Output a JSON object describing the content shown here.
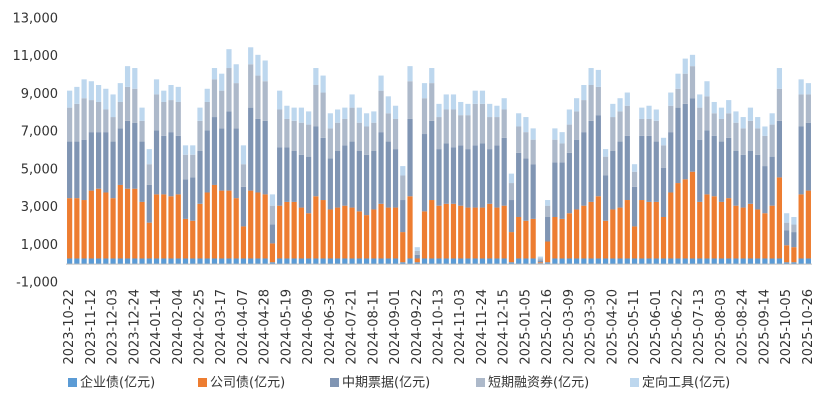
{
  "chart_data": {
    "type": "stacked_bar",
    "categories": [
      "2023-10-22",
      null,
      null,
      "2023-11-12",
      null,
      null,
      "2023-12-03",
      null,
      null,
      "2023-12-24",
      null,
      null,
      "2024-01-14",
      null,
      null,
      "2024-02-04",
      null,
      null,
      "2024-02-25",
      null,
      null,
      "2024-03-17",
      null,
      null,
      "2024-04-07",
      null,
      null,
      "2024-04-28",
      null,
      null,
      "2024-05-19",
      null,
      null,
      "2024-06-09",
      null,
      null,
      "2024-06-30",
      null,
      null,
      "2024-07-21",
      null,
      null,
      "2024-08-11",
      null,
      null,
      "2024-09-01",
      null,
      null,
      "2024-09-22",
      null,
      null,
      "2024-10-13",
      null,
      null,
      "2024-11-03",
      null,
      null,
      "2024-11-24",
      null,
      null,
      "2024-12-15",
      null,
      null,
      "2025-01-05",
      null,
      null,
      "2025-02-16",
      null,
      null,
      "2025-03-09",
      null,
      null,
      "2025-03-30",
      null,
      null,
      "2025-04-20",
      null,
      null,
      "2025-05-11",
      null,
      null,
      "2025-06-01",
      null,
      null,
      "2025-06-22",
      null,
      null,
      "2025-07-13",
      null,
      null,
      "2025-08-03",
      null,
      null,
      "2025-08-24",
      null,
      null,
      "2025-09-14",
      null,
      null,
      "2025-10-05",
      null,
      null,
      "2025-10-26"
    ],
    "series": [
      {
        "name": "企业债(亿元)",
        "color": "#5b9bd5",
        "values": [
          300,
          300,
          300,
          300,
          300,
          300,
          300,
          300,
          300,
          300,
          300,
          300,
          300,
          300,
          300,
          300,
          300,
          300,
          300,
          300,
          300,
          300,
          300,
          300,
          300,
          300,
          300,
          300,
          100,
          300,
          300,
          300,
          300,
          300,
          300,
          300,
          300,
          300,
          300,
          300,
          300,
          300,
          300,
          300,
          300,
          300,
          100,
          300,
          100,
          300,
          300,
          300,
          300,
          300,
          300,
          300,
          300,
          300,
          300,
          300,
          300,
          100,
          300,
          300,
          300,
          50,
          100,
          300,
          300,
          300,
          300,
          300,
          300,
          300,
          300,
          300,
          300,
          300,
          300,
          300,
          300,
          300,
          300,
          300,
          300,
          300,
          300,
          300,
          300,
          300,
          300,
          300,
          300,
          300,
          300,
          300,
          300,
          300,
          300,
          100,
          100,
          300,
          300
        ]
      },
      {
        "name": "公司债(亿元)",
        "color": "#ed7d31",
        "values": [
          3200,
          3200,
          3100,
          3600,
          3700,
          3500,
          3200,
          3900,
          3700,
          3700,
          3000,
          1900,
          3400,
          3400,
          3300,
          3400,
          2100,
          2000,
          2900,
          3500,
          3900,
          3600,
          3600,
          3200,
          1700,
          3600,
          3500,
          3400,
          1000,
          2800,
          3000,
          3000,
          2700,
          2400,
          3300,
          3100,
          2600,
          2700,
          2800,
          2700,
          2500,
          2300,
          2600,
          2900,
          2700,
          2700,
          1600,
          3300,
          200,
          2500,
          3100,
          2800,
          2900,
          2900,
          2800,
          2700,
          2700,
          2700,
          2900,
          2700,
          2800,
          1600,
          2200,
          2000,
          2100,
          50,
          1100,
          2200,
          2100,
          2400,
          2600,
          2800,
          3000,
          3300,
          2000,
          2600,
          2700,
          3100,
          1700,
          3100,
          3000,
          3000,
          2200,
          3500,
          4000,
          4200,
          4600,
          3000,
          3400,
          3300,
          3000,
          3200,
          2800,
          2700,
          2900,
          2600,
          2400,
          2800,
          4300,
          900,
          800,
          3400,
          3600
        ]
      },
      {
        "name": "中期票据(亿元)",
        "color": "#8095b3",
        "values": [
          3000,
          3000,
          3200,
          3100,
          3000,
          3200,
          3000,
          3000,
          3600,
          3500,
          3200,
          2000,
          3400,
          3100,
          3400,
          3100,
          2100,
          2300,
          2800,
          3300,
          3600,
          3300,
          4200,
          3700,
          2100,
          4400,
          3900,
          3900,
          1000,
          3100,
          2900,
          2700,
          2800,
          3000,
          3700,
          3300,
          2700,
          3000,
          3200,
          3500,
          3200,
          3200,
          3100,
          3800,
          3500,
          3100,
          1700,
          4100,
          200,
          4100,
          4200,
          3000,
          3200,
          3000,
          3200,
          3100,
          3300,
          3400,
          2900,
          3300,
          3600,
          1700,
          3400,
          3300,
          2900,
          100,
          1300,
          2900,
          3000,
          3200,
          3700,
          3900,
          4300,
          4300,
          2400,
          3100,
          3500,
          3400,
          2100,
          3400,
          3500,
          3200,
          2600,
          3200,
          4000,
          4000,
          3900,
          3300,
          3400,
          3200,
          3200,
          3200,
          2900,
          2800,
          2800,
          2900,
          2500,
          2600,
          3000,
          800,
          800,
          3600,
          3600
        ]
      },
      {
        "name": "短期融资券(亿元)",
        "color": "#adb9ca",
        "values": [
          1800,
          2000,
          2200,
          1700,
          1600,
          1200,
          1300,
          1400,
          1800,
          1800,
          1100,
          1100,
          1900,
          1800,
          1700,
          1800,
          1300,
          1200,
          1600,
          1500,
          2000,
          2000,
          2300,
          2400,
          1200,
          2300,
          2300,
          2100,
          1000,
          2000,
          1500,
          1600,
          1700,
          1700,
          2200,
          2400,
          1600,
          1500,
          1400,
          1800,
          1500,
          1500,
          1500,
          2200,
          1500,
          1600,
          1300,
          2000,
          200,
          1900,
          2000,
          1700,
          1800,
          2000,
          1600,
          1800,
          2200,
          2100,
          1700,
          1500,
          1500,
          900,
          1400,
          1400,
          1300,
          100,
          600,
          1200,
          1000,
          1500,
          1500,
          1700,
          1900,
          1500,
          1000,
          1800,
          1600,
          1600,
          800,
          900,
          900,
          1100,
          1200,
          1400,
          1000,
          1600,
          1700,
          1700,
          1800,
          1200,
          1200,
          1300,
          1500,
          1400,
          1600,
          1400,
          1600,
          1700,
          1700,
          400,
          400,
          1700,
          1500
        ]
      },
      {
        "name": "定向工具(亿元)",
        "color": "#bdd7ee",
        "values": [
          900,
          900,
          1000,
          1000,
          900,
          1100,
          1200,
          1000,
          1100,
          1100,
          700,
          800,
          800,
          600,
          800,
          800,
          500,
          500,
          700,
          700,
          600,
          900,
          1000,
          1000,
          1000,
          900,
          1100,
          1100,
          600,
          1000,
          700,
          700,
          800,
          700,
          900,
          900,
          800,
          700,
          600,
          700,
          800,
          700,
          600,
          800,
          900,
          700,
          500,
          800,
          200,
          800,
          800,
          700,
          800,
          800,
          700,
          600,
          700,
          700,
          700,
          600,
          600,
          500,
          700,
          800,
          600,
          100,
          300,
          600,
          600,
          800,
          700,
          800,
          900,
          900,
          400,
          700,
          700,
          700,
          400,
          600,
          700,
          600,
          400,
          700,
          800,
          800,
          600,
          700,
          800,
          600,
          600,
          700,
          600,
          600,
          700,
          600,
          500,
          600,
          1100,
          500,
          400,
          800,
          600
        ]
      }
    ],
    "ylim": [
      -1000,
      13000
    ],
    "yticks": [
      {
        "value": -1000,
        "label": "-1,000"
      },
      {
        "value": 1000,
        "label": "1,000"
      },
      {
        "value": 3000,
        "label": "3,000"
      },
      {
        "value": 5000,
        "label": "5,000"
      },
      {
        "value": 7000,
        "label": "7,000"
      },
      {
        "value": 9000,
        "label": "9,000"
      },
      {
        "value": 11000,
        "label": "11,000"
      },
      {
        "value": 13000,
        "label": "13,000"
      }
    ],
    "grid": false,
    "legend": "bottom"
  }
}
